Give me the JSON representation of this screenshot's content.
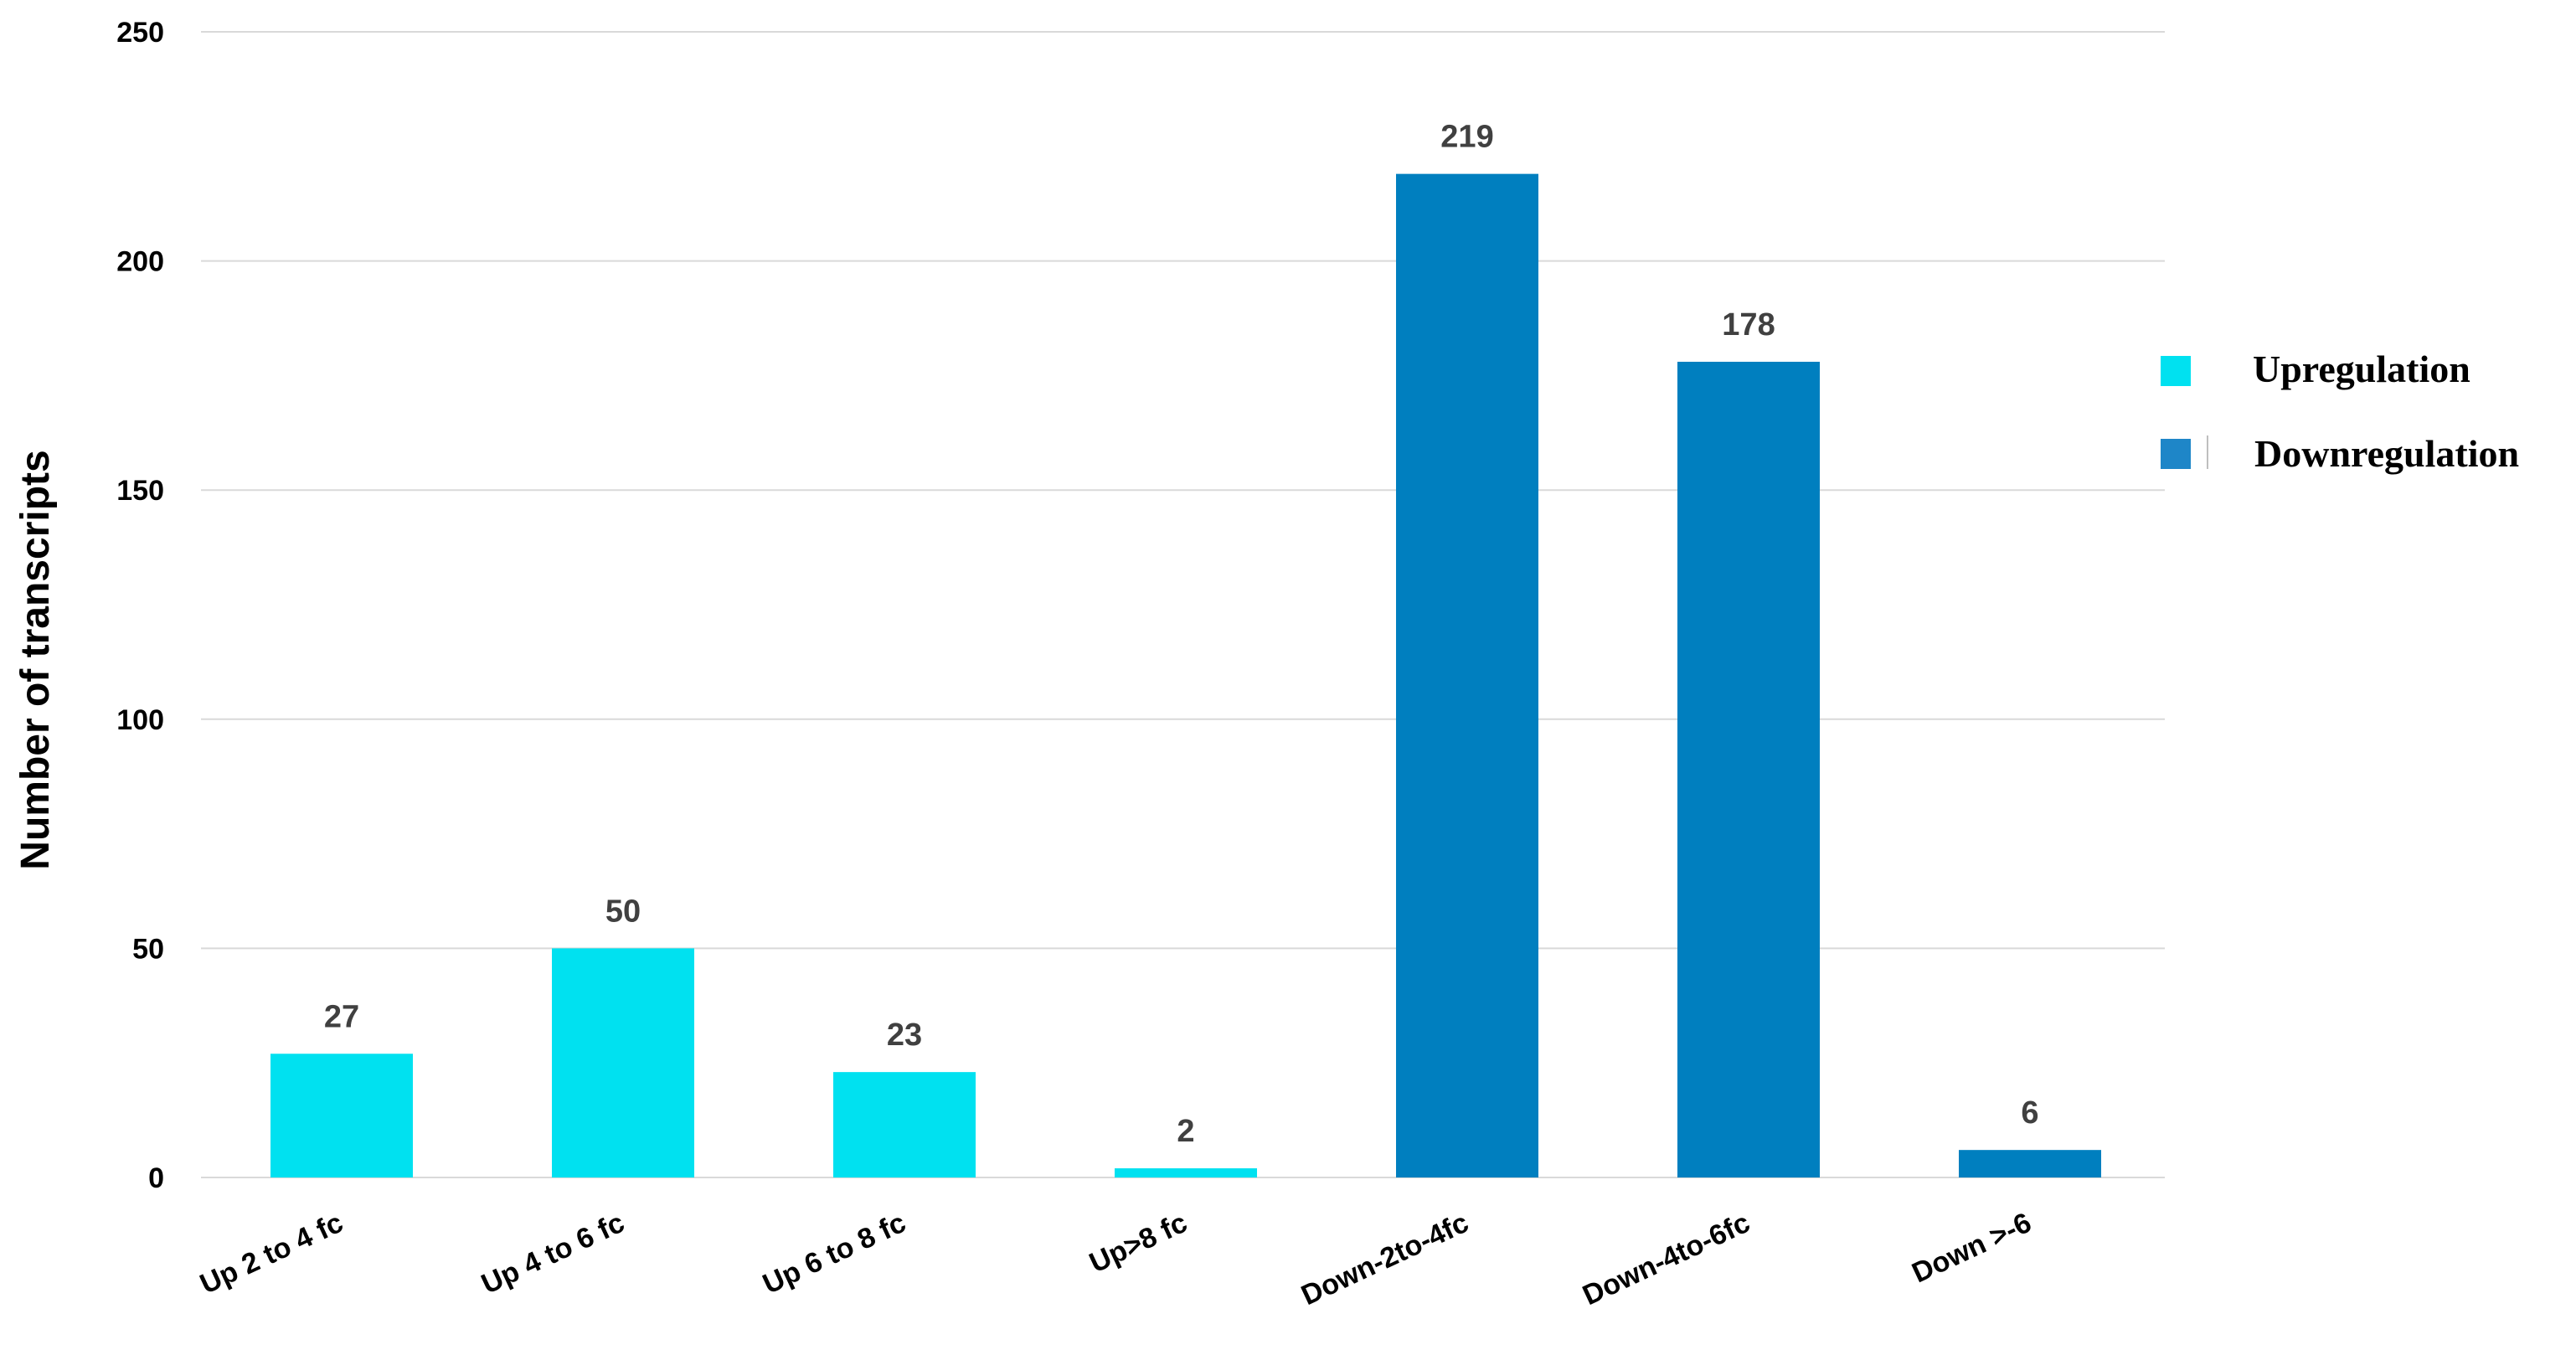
{
  "chart_data": {
    "type": "bar",
    "categories": [
      "Up 2 to 4 fc",
      "Up 4 to 6 fc",
      "Up 6 to 8 fc",
      "Up>8 fc",
      "Down-2to-4fc",
      "Down-4to-6fc",
      "Down >-6"
    ],
    "values": [
      27,
      50,
      23,
      2,
      219,
      178,
      6
    ],
    "groups": [
      "Upregulation",
      "Upregulation",
      "Upregulation",
      "Upregulation",
      "Downregulation",
      "Downregulation",
      "Downregulation"
    ],
    "series": [
      {
        "name": "Upregulation",
        "color": "#00E1F0"
      },
      {
        "name": "Downregulation",
        "color": "#007FBF"
      }
    ],
    "title": "",
    "xlabel": "",
    "ylabel": "Number of transcripts",
    "ylim": [
      0,
      250
    ],
    "yticks": [
      0,
      50,
      100,
      150,
      200,
      250
    ],
    "grid": true,
    "legend_position": "right",
    "data_labels": true
  }
}
